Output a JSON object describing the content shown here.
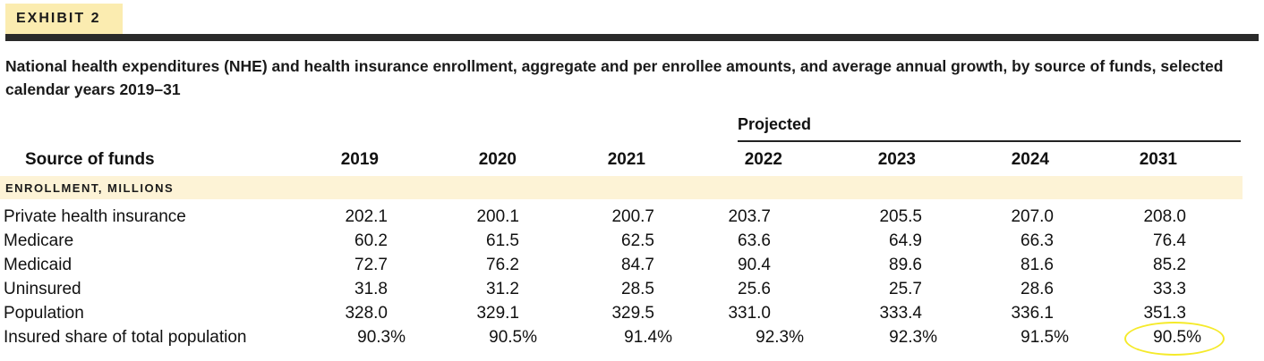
{
  "exhibit": {
    "label": "EXHIBIT 2"
  },
  "title": "National health expenditures (NHE) and health insurance enrollment, aggregate and per enrollee amounts, and average annual growth, by source of funds, selected calendar years 2019–31",
  "table": {
    "projected_label": "Projected",
    "source_header": "Source of funds",
    "years": [
      "2019",
      "2020",
      "2021",
      "2022",
      "2023",
      "2024",
      "2031"
    ],
    "section_label": "ENROLLMENT, MILLIONS",
    "rows": [
      {
        "label": "Private health insurance",
        "values": [
          "202.1",
          "200.1",
          "200.7",
          "203.7",
          "205.5",
          "207.0",
          "208.0"
        ]
      },
      {
        "label": "Medicare",
        "values": [
          "60.2",
          "61.5",
          "62.5",
          "63.6",
          "64.9",
          "66.3",
          "76.4"
        ]
      },
      {
        "label": "Medicaid",
        "values": [
          "72.7",
          "76.2",
          "84.7",
          "90.4",
          "89.6",
          "81.6",
          "85.2"
        ]
      },
      {
        "label": "Uninsured",
        "values": [
          "31.8",
          "31.2",
          "28.5",
          "25.6",
          "25.7",
          "28.6",
          "33.3"
        ]
      },
      {
        "label": "Population",
        "values": [
          "328.0",
          "329.1",
          "329.5",
          "331.0",
          "333.4",
          "336.1",
          "351.3"
        ]
      },
      {
        "label": "Insured share of total population",
        "values": [
          "90.3%",
          "90.5%",
          "91.4%",
          "92.3%",
          "92.3%",
          "91.5%",
          "90.5%"
        ]
      }
    ]
  },
  "colors": {
    "tag_background": "#fbecb0",
    "band_background": "#fdf3d6",
    "rule": "#2a2a2a",
    "highlight_circle": "#f5ea2a"
  }
}
